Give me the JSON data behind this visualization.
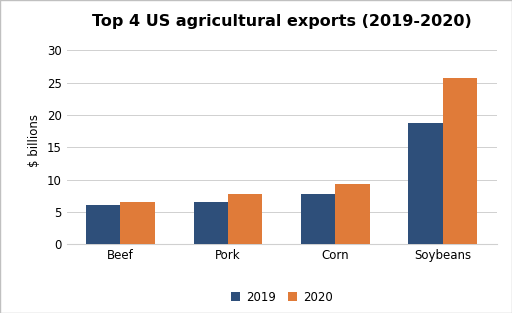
{
  "title": "Top 4 US agricultural exports (2019-2020)",
  "categories": [
    "Beef",
    "Pork",
    "Corn",
    "Soybeans"
  ],
  "values_2019": [
    6.0,
    6.5,
    7.7,
    18.7
  ],
  "values_2020": [
    6.5,
    7.7,
    9.3,
    25.7
  ],
  "color_2019": "#2e4f7a",
  "color_2020": "#e07b39",
  "ylabel": "$ billions",
  "ylim": [
    0,
    32
  ],
  "yticks": [
    0,
    5,
    10,
    15,
    20,
    25,
    30
  ],
  "legend_labels": [
    "2019",
    "2020"
  ],
  "bar_width": 0.32,
  "title_fontsize": 11.5,
  "label_fontsize": 8.5,
  "tick_fontsize": 8.5,
  "background_color": "#ffffff",
  "plot_bg_color": "#ffffff",
  "grid_color": "#d0d0d0",
  "border_color": "#c0c0c0"
}
